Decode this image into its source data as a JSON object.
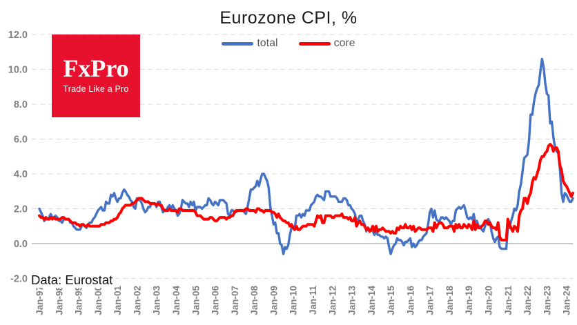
{
  "title": "Eurozone CPI, %",
  "source_note": "Data: Eurostat",
  "logo": {
    "title": "FxPro",
    "tagline": "Trade Like a Pro",
    "background_color": "#e8112d"
  },
  "legend": [
    {
      "label": "total",
      "color": "#4472C4"
    },
    {
      "label": "core",
      "color": "#FF0000"
    }
  ],
  "chart_data": {
    "type": "line",
    "title": "Eurozone CPI, %",
    "xlabel": "",
    "ylabel": "",
    "ylim": [
      -2.0,
      12.0
    ],
    "grid": "horizontal-dashed",
    "legend_position": "top-center",
    "frequency": "monthly",
    "x_start": "Jan-1997",
    "x_end": "May-2024",
    "x_tick_every_months": 12,
    "x_tick_labels": [
      "Jan-97",
      "Jan-98",
      "Jan-99",
      "Jan-00",
      "Jan-01",
      "Jan-02",
      "Jan-03",
      "Jan-04",
      "Jan-05",
      "Jan-06",
      "Jan-07",
      "Jan-08",
      "Jan-09",
      "Jan-10",
      "Jan-11",
      "Jan-12",
      "Jan-13",
      "Jan-14",
      "Jan-15",
      "Jan-16",
      "Jan-17",
      "Jan-18",
      "Jan-19",
      "Jan-20",
      "Jan-21",
      "Jan-22",
      "Jan-23",
      "Jan-24"
    ],
    "y_ticks": [
      {
        "value": 12,
        "label": "12.0"
      },
      {
        "value": 10,
        "label": "10.0"
      },
      {
        "value": 8,
        "label": "8.0"
      },
      {
        "value": 6,
        "label": "6.0"
      },
      {
        "value": 4,
        "label": "4.0"
      },
      {
        "value": 2,
        "label": "2.0"
      },
      {
        "value": 0,
        "label": "0.0"
      },
      {
        "value": -2,
        "label": "-2.0"
      }
    ],
    "series": [
      {
        "name": "total",
        "color": "#4472C4",
        "stroke_width": 3.4,
        "values": [
          2.0,
          1.8,
          1.6,
          1.3,
          1.4,
          1.4,
          1.5,
          1.7,
          1.5,
          1.5,
          1.6,
          1.5,
          1.3,
          1.3,
          1.2,
          1.4,
          1.4,
          1.4,
          1.4,
          1.2,
          1.2,
          1.0,
          0.9,
          0.8,
          0.8,
          0.8,
          1.0,
          1.1,
          1.0,
          0.9,
          1.1,
          1.2,
          1.2,
          1.4,
          1.5,
          1.7,
          1.9,
          2.0,
          2.1,
          1.9,
          1.9,
          2.4,
          2.3,
          2.3,
          2.8,
          2.7,
          2.9,
          2.6,
          2.4,
          2.6,
          2.6,
          2.9,
          3.1,
          3.0,
          2.8,
          2.7,
          2.5,
          2.4,
          2.1,
          2.0,
          2.6,
          2.5,
          2.5,
          2.3,
          2.0,
          1.8,
          1.9,
          2.1,
          2.1,
          2.3,
          2.3,
          2.3,
          2.1,
          2.4,
          2.4,
          2.1,
          1.8,
          1.9,
          1.9,
          2.1,
          2.2,
          2.0,
          2.2,
          2.0,
          1.9,
          1.6,
          1.7,
          2.0,
          2.5,
          2.4,
          2.3,
          2.3,
          2.1,
          2.4,
          2.2,
          2.4,
          1.9,
          2.1,
          2.1,
          2.1,
          2.0,
          2.1,
          2.2,
          2.2,
          2.6,
          2.5,
          2.3,
          2.2,
          2.4,
          2.3,
          2.2,
          2.5,
          2.5,
          2.5,
          2.4,
          2.3,
          1.7,
          1.6,
          1.9,
          1.9,
          1.8,
          1.8,
          1.9,
          1.9,
          1.9,
          1.9,
          1.8,
          1.7,
          2.1,
          2.6,
          3.1,
          3.1,
          3.2,
          3.3,
          3.6,
          3.3,
          3.7,
          4.0,
          4.0,
          3.8,
          3.6,
          3.2,
          2.1,
          1.6,
          1.1,
          1.2,
          0.6,
          0.6,
          0.0,
          -0.1,
          -0.6,
          -0.2,
          -0.3,
          -0.1,
          0.5,
          0.9,
          1.0,
          0.8,
          1.6,
          1.6,
          1.7,
          1.5,
          1.7,
          1.6,
          1.9,
          1.9,
          1.9,
          2.2,
          2.3,
          2.4,
          2.7,
          2.8,
          2.7,
          2.7,
          2.6,
          2.5,
          3.0,
          3.0,
          3.0,
          2.7,
          2.7,
          2.7,
          2.7,
          2.6,
          2.4,
          2.4,
          2.4,
          2.6,
          2.6,
          2.5,
          2.2,
          2.2,
          2.0,
          1.9,
          1.7,
          1.2,
          1.4,
          1.6,
          1.6,
          1.3,
          1.1,
          0.7,
          0.9,
          0.8,
          0.8,
          0.7,
          0.5,
          0.7,
          0.5,
          0.5,
          0.4,
          0.4,
          0.3,
          0.4,
          0.3,
          -0.2,
          -0.6,
          -0.3,
          -0.1,
          0.0,
          0.3,
          0.2,
          0.2,
          0.1,
          -0.1,
          0.1,
          0.1,
          0.2,
          0.3,
          -0.2,
          0.0,
          -0.2,
          -0.1,
          0.1,
          0.2,
          0.2,
          0.4,
          0.5,
          0.6,
          1.1,
          1.8,
          2.0,
          1.5,
          1.9,
          1.4,
          1.3,
          1.3,
          1.5,
          1.5,
          1.4,
          1.5,
          1.4,
          1.3,
          1.1,
          1.3,
          1.3,
          1.9,
          2.0,
          2.1,
          2.0,
          2.1,
          2.2,
          1.9,
          1.5,
          1.4,
          1.5,
          1.4,
          1.7,
          1.2,
          1.3,
          1.0,
          1.0,
          0.8,
          0.7,
          1.0,
          1.3,
          1.4,
          1.2,
          0.7,
          0.3,
          0.1,
          0.3,
          0.4,
          -0.2,
          -0.3,
          -0.3,
          -0.3,
          -0.3,
          0.9,
          0.9,
          1.3,
          1.6,
          2.0,
          1.9,
          2.2,
          3.0,
          3.4,
          4.1,
          4.9,
          5.0,
          5.1,
          5.9,
          7.4,
          7.4,
          8.1,
          8.6,
          8.9,
          9.1,
          9.9,
          10.6,
          10.1,
          9.2,
          8.6,
          8.5,
          6.9,
          7.0,
          6.1,
          5.5,
          5.3,
          5.2,
          4.3,
          2.9,
          2.4,
          2.9,
          2.8,
          2.6,
          2.4,
          2.4,
          2.6
        ]
      },
      {
        "name": "core",
        "color": "#FF0000",
        "stroke_width": 4.0,
        "values": [
          1.6,
          1.5,
          1.5,
          1.4,
          1.5,
          1.4,
          1.4,
          1.5,
          1.4,
          1.5,
          1.4,
          1.4,
          1.4,
          1.4,
          1.5,
          1.5,
          1.4,
          1.4,
          1.4,
          1.3,
          1.2,
          1.2,
          1.2,
          1.1,
          1.1,
          1.0,
          1.1,
          1.1,
          1.0,
          1.0,
          1.1,
          1.0,
          1.0,
          1.0,
          1.0,
          1.0,
          1.0,
          1.0,
          1.1,
          1.1,
          1.1,
          1.2,
          1.2,
          1.2,
          1.3,
          1.3,
          1.4,
          1.4,
          1.5,
          1.7,
          1.8,
          2.0,
          2.1,
          2.2,
          2.2,
          2.2,
          2.2,
          2.3,
          2.3,
          2.4,
          2.5,
          2.6,
          2.6,
          2.6,
          2.5,
          2.4,
          2.4,
          2.4,
          2.3,
          2.3,
          2.3,
          2.3,
          2.2,
          2.3,
          2.2,
          2.2,
          2.0,
          1.9,
          1.9,
          1.9,
          2.0,
          1.9,
          1.9,
          1.9,
          1.9,
          1.8,
          2.0,
          2.0,
          1.9,
          1.9,
          1.9,
          1.9,
          1.9,
          1.9,
          1.9,
          1.9,
          1.8,
          1.6,
          1.6,
          1.6,
          1.5,
          1.4,
          1.4,
          1.4,
          1.4,
          1.5,
          1.5,
          1.4,
          1.3,
          1.3,
          1.4,
          1.5,
          1.5,
          1.5,
          1.5,
          1.4,
          1.5,
          1.5,
          1.6,
          1.6,
          1.8,
          1.9,
          1.9,
          1.9,
          1.9,
          1.9,
          1.9,
          2.0,
          2.0,
          1.9,
          1.9,
          1.9,
          1.9,
          1.8,
          2.0,
          2.0,
          1.9,
          1.9,
          1.8,
          1.9,
          1.9,
          1.9,
          1.9,
          1.8,
          1.8,
          1.7,
          1.5,
          1.7,
          1.5,
          1.4,
          1.3,
          1.3,
          1.2,
          1.2,
          1.0,
          1.1,
          0.9,
          0.8,
          1.0,
          0.8,
          0.8,
          0.9,
          1.0,
          1.0,
          1.0,
          1.1,
          1.1,
          1.1,
          1.1,
          1.0,
          1.3,
          1.6,
          1.5,
          1.6,
          1.2,
          1.2,
          1.6,
          1.6,
          1.6,
          1.6,
          1.5,
          1.5,
          1.6,
          1.6,
          1.6,
          1.6,
          1.7,
          1.5,
          1.5,
          1.5,
          1.4,
          1.5,
          1.3,
          1.3,
          1.5,
          1.0,
          1.2,
          1.3,
          1.1,
          1.1,
          1.0,
          0.8,
          0.9,
          0.7,
          0.8,
          1.0,
          0.7,
          1.0,
          0.7,
          0.8,
          0.8,
          0.9,
          0.8,
          0.7,
          0.7,
          0.7,
          0.6,
          0.7,
          0.6,
          0.6,
          0.9,
          0.8,
          1.0,
          0.9,
          0.9,
          1.1,
          0.9,
          0.9,
          1.0,
          0.8,
          1.0,
          0.7,
          0.8,
          0.9,
          0.9,
          0.8,
          0.8,
          0.8,
          0.8,
          0.9,
          0.9,
          0.9,
          0.7,
          1.2,
          0.9,
          1.1,
          1.2,
          1.2,
          1.1,
          0.9,
          0.9,
          0.9,
          1.0,
          1.0,
          1.0,
          0.7,
          1.1,
          0.9,
          1.1,
          0.9,
          0.9,
          1.1,
          1.0,
          0.9,
          1.1,
          1.0,
          0.8,
          1.3,
          0.8,
          1.1,
          0.9,
          0.9,
          1.0,
          1.1,
          1.3,
          1.3,
          1.1,
          1.2,
          1.0,
          0.9,
          0.9,
          0.8,
          1.2,
          0.4,
          0.2,
          0.2,
          0.2,
          0.2,
          1.4,
          1.1,
          0.9,
          0.7,
          1.0,
          0.9,
          0.7,
          1.6,
          1.9,
          2.0,
          2.6,
          2.6,
          2.3,
          2.7,
          2.9,
          3.5,
          3.8,
          3.7,
          4.0,
          4.3,
          4.8,
          5.0,
          5.0,
          5.2,
          5.3,
          5.6,
          5.7,
          5.6,
          5.3,
          5.5,
          5.5,
          5.3,
          4.5,
          4.2,
          3.6,
          3.4,
          3.3,
          3.1,
          2.9,
          2.7,
          2.9
        ]
      }
    ]
  }
}
